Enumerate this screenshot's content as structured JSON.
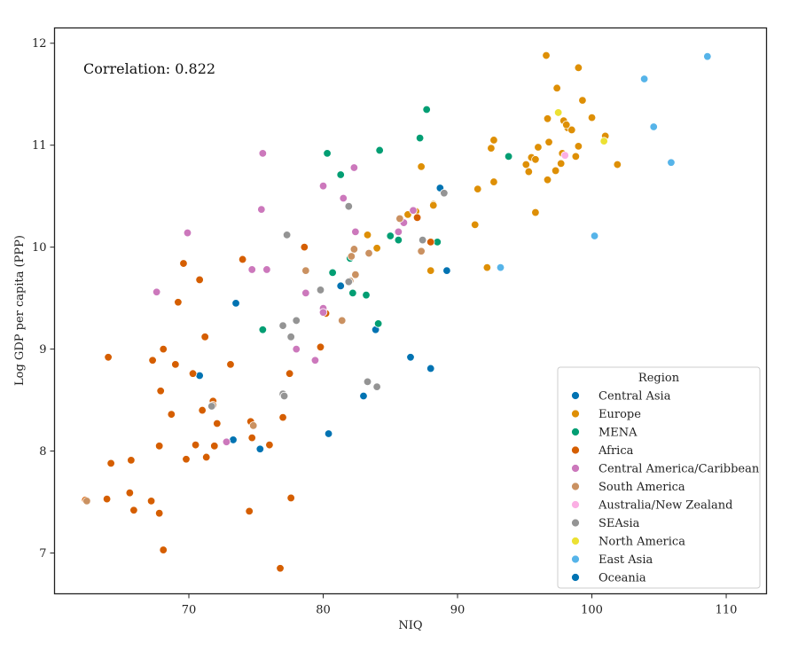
{
  "chart_data": {
    "type": "scatter",
    "xlabel": "NIQ",
    "ylabel": "Log GDP per capita (PPP)",
    "xlim": [
      60,
      113
    ],
    "ylim": [
      6.6,
      12.15
    ],
    "xticks": [
      70,
      80,
      90,
      100,
      110
    ],
    "yticks": [
      7,
      8,
      9,
      10,
      11,
      12
    ],
    "grid": false,
    "annotation": "Correlation: 0.822",
    "legend": {
      "title": "Region",
      "placement": "lower-right"
    },
    "series": [
      {
        "name": "Central Asia",
        "color": "#0173b2",
        "points": [
          [
            70.8,
            8.74
          ],
          [
            73.5,
            9.45
          ],
          [
            73.3,
            8.11
          ],
          [
            75.3,
            8.02
          ],
          [
            81.3,
            9.62
          ],
          [
            80.4,
            8.17
          ],
          [
            83,
            8.54
          ],
          [
            83.9,
            9.19
          ],
          [
            86.5,
            8.92
          ],
          [
            88.0,
            8.81
          ],
          [
            88.7,
            10.58
          ],
          [
            89.2,
            9.77
          ]
        ]
      },
      {
        "name": "Europe",
        "color": "#de8f05",
        "points": [
          [
            96.6,
            11.88
          ],
          [
            97.4,
            11.56
          ],
          [
            99.0,
            11.76
          ],
          [
            99.3,
            11.44
          ],
          [
            100.0,
            11.27
          ],
          [
            101.0,
            11.09
          ],
          [
            101.9,
            10.81
          ],
          [
            97.8,
            10.92
          ],
          [
            98.8,
            10.89
          ],
          [
            99.0,
            10.99
          ],
          [
            96.0,
            10.98
          ],
          [
            96.7,
            11.26
          ],
          [
            97.9,
            11.24
          ],
          [
            98.2,
            11.17
          ],
          [
            98.5,
            11.15
          ],
          [
            98.1,
            11.2
          ],
          [
            96.8,
            11.03
          ],
          [
            95.5,
            10.88
          ],
          [
            95.8,
            10.86
          ],
          [
            95.1,
            10.81
          ],
          [
            95.3,
            10.74
          ],
          [
            97.7,
            10.82
          ],
          [
            97.3,
            10.75
          ],
          [
            96.7,
            10.66
          ],
          [
            92.7,
            11.05
          ],
          [
            92.5,
            10.97
          ],
          [
            92.7,
            10.64
          ],
          [
            91.5,
            10.57
          ],
          [
            91.3,
            10.22
          ],
          [
            95.8,
            10.34
          ],
          [
            92.2,
            9.8
          ],
          [
            87.3,
            10.79
          ],
          [
            86.9,
            10.35
          ],
          [
            87.0,
            10.29
          ],
          [
            86.3,
            10.32
          ],
          [
            88.0,
            10.05
          ],
          [
            88.2,
            10.42
          ],
          [
            88.2,
            10.41
          ],
          [
            88.0,
            9.77
          ],
          [
            84.0,
            9.99
          ],
          [
            83.3,
            10.12
          ]
        ]
      },
      {
        "name": "MENA",
        "color": "#029e73",
        "points": [
          [
            87.7,
            11.35
          ],
          [
            87.2,
            11.07
          ],
          [
            93.8,
            10.89
          ],
          [
            84.2,
            10.95
          ],
          [
            80.3,
            10.92
          ],
          [
            81.3,
            10.71
          ],
          [
            82.0,
            9.89
          ],
          [
            80.7,
            9.75
          ],
          [
            82.2,
            9.55
          ],
          [
            83.2,
            9.53
          ],
          [
            84.1,
            9.25
          ],
          [
            85.0,
            10.11
          ],
          [
            85.6,
            10.07
          ],
          [
            88.5,
            10.05
          ],
          [
            75.5,
            9.19
          ]
        ]
      },
      {
        "name": "Africa",
        "color": "#d55e00",
        "points": [
          [
            62.3,
            7.52
          ],
          [
            64.0,
            8.92
          ],
          [
            63.9,
            7.53
          ],
          [
            64.2,
            7.88
          ],
          [
            65.7,
            7.91
          ],
          [
            65.6,
            7.59
          ],
          [
            65.9,
            7.42
          ],
          [
            67.2,
            7.51
          ],
          [
            67.8,
            7.39
          ],
          [
            67.3,
            8.89
          ],
          [
            68.1,
            9.0
          ],
          [
            67.9,
            8.59
          ],
          [
            67.8,
            8.05
          ],
          [
            68.1,
            7.03
          ],
          [
            68.7,
            8.36
          ],
          [
            69.0,
            8.85
          ],
          [
            69.2,
            9.46
          ],
          [
            69.6,
            9.84
          ],
          [
            69.8,
            7.92
          ],
          [
            70.3,
            8.76
          ],
          [
            70.5,
            8.06
          ],
          [
            70.8,
            9.68
          ],
          [
            71.0,
            8.4
          ],
          [
            71.2,
            9.12
          ],
          [
            71.3,
            7.94
          ],
          [
            71.8,
            8.49
          ],
          [
            71.9,
            8.05
          ],
          [
            72.1,
            8.27
          ],
          [
            73.1,
            8.85
          ],
          [
            74.0,
            9.88
          ],
          [
            74.5,
            7.41
          ],
          [
            74.6,
            8.29
          ],
          [
            74.7,
            8.13
          ],
          [
            76.0,
            8.06
          ],
          [
            76.8,
            6.85
          ],
          [
            77.0,
            8.33
          ],
          [
            77.5,
            8.76
          ],
          [
            77.6,
            7.54
          ],
          [
            78.6,
            10.0
          ],
          [
            80.2,
            9.35
          ],
          [
            87.0,
            10.29
          ],
          [
            88.0,
            10.05
          ],
          [
            79.8,
            9.02
          ]
        ]
      },
      {
        "name": "Central America/Caribbean",
        "color": "#cc78bc",
        "points": [
          [
            75.5,
            10.92
          ],
          [
            69.9,
            10.14
          ],
          [
            67.6,
            9.56
          ],
          [
            74.7,
            9.78
          ],
          [
            75.8,
            9.78
          ],
          [
            75.4,
            10.37
          ],
          [
            78.7,
            9.55
          ],
          [
            78.0,
            9.0
          ],
          [
            79.4,
            8.89
          ],
          [
            80.0,
            9.4
          ],
          [
            80.0,
            9.36
          ],
          [
            80.0,
            10.6
          ],
          [
            81.5,
            10.48
          ],
          [
            82.3,
            10.78
          ],
          [
            82.4,
            10.15
          ],
          [
            86.0,
            10.24
          ],
          [
            86.7,
            10.36
          ],
          [
            85.6,
            10.15
          ],
          [
            72.8,
            8.09
          ]
        ]
      },
      {
        "name": "South America",
        "color": "#ca9161",
        "points": [
          [
            78.7,
            9.77
          ],
          [
            81.4,
            9.28
          ],
          [
            82.0,
            9.67
          ],
          [
            82.4,
            9.73
          ],
          [
            82.3,
            9.98
          ],
          [
            83.4,
            9.94
          ],
          [
            85.7,
            10.28
          ],
          [
            87.3,
            9.96
          ],
          [
            74.8,
            8.25
          ],
          [
            71.8,
            8.45
          ],
          [
            62.4,
            7.51
          ],
          [
            82.1,
            9.91
          ]
        ]
      },
      {
        "name": "Australia/New Zealand",
        "color": "#fbafe4",
        "points": [
          [
            98.0,
            10.9
          ]
        ]
      },
      {
        "name": "SEAsia",
        "color": "#949494",
        "points": [
          [
            77.3,
            10.12
          ],
          [
            81.9,
            10.4
          ],
          [
            79.8,
            9.58
          ],
          [
            78.0,
            9.28
          ],
          [
            77.0,
            9.23
          ],
          [
            77.6,
            9.12
          ],
          [
            77.0,
            8.56
          ],
          [
            77.1,
            8.54
          ],
          [
            83.3,
            8.68
          ],
          [
            84.0,
            8.63
          ],
          [
            89.0,
            10.53
          ],
          [
            87.4,
            10.07
          ],
          [
            81.9,
            9.66
          ],
          [
            71.7,
            8.44
          ]
        ]
      },
      {
        "name": "North America",
        "color": "#ece133",
        "points": [
          [
            97.5,
            11.32
          ],
          [
            100.9,
            11.04
          ]
        ]
      },
      {
        "name": "East Asia",
        "color": "#56b4e9",
        "points": [
          [
            108.6,
            11.87
          ],
          [
            103.9,
            11.65
          ],
          [
            104.6,
            11.18
          ],
          [
            105.9,
            10.83
          ],
          [
            100.2,
            10.11
          ],
          [
            93.2,
            9.8
          ]
        ]
      },
      {
        "name": "Oceania",
        "color": "#0173b2",
        "points": []
      }
    ]
  }
}
